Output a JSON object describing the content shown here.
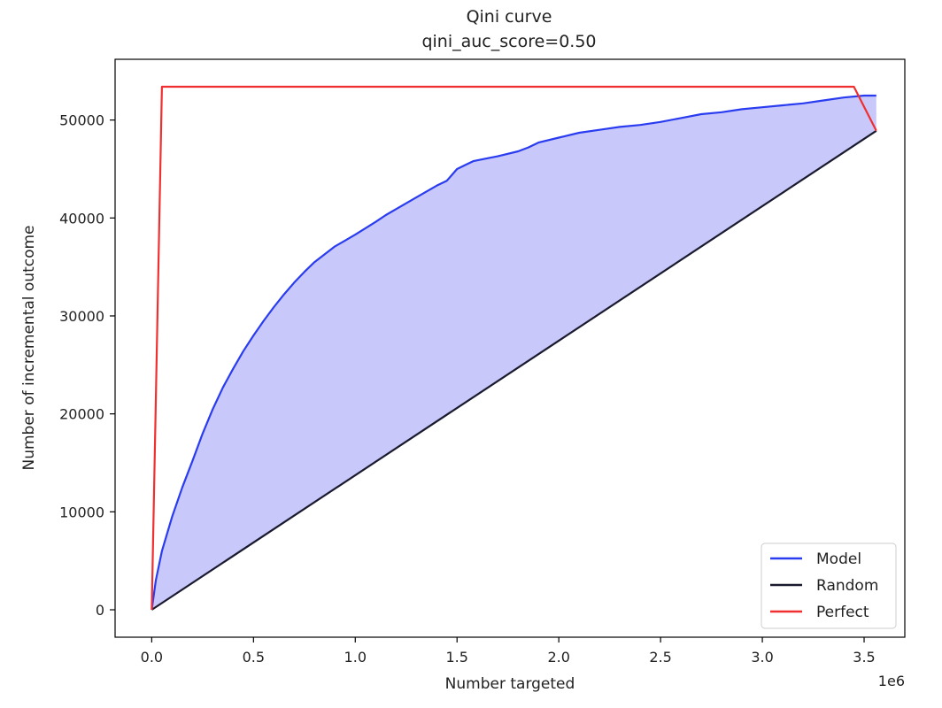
{
  "chart_data": {
    "type": "line",
    "title": "Qini curve",
    "subtitle": "qini_auc_score=0.50",
    "xlabel": "Number targeted",
    "ylabel": "Number of incremental outcome",
    "x_offset_label": "1e6",
    "xlim": [
      -0.18,
      3.7
    ],
    "ylim": [
      -2800,
      56200
    ],
    "x_ticks": [
      0.0,
      0.5,
      1.0,
      1.5,
      2.0,
      2.5,
      3.0,
      3.5
    ],
    "x_tick_labels": [
      "0.0",
      "0.5",
      "1.0",
      "1.5",
      "2.0",
      "2.5",
      "3.0",
      "3.5"
    ],
    "y_ticks": [
      0,
      10000,
      20000,
      30000,
      40000,
      50000
    ],
    "y_tick_labels": [
      "0",
      "10000",
      "20000",
      "30000",
      "40000",
      "50000"
    ],
    "grid": false,
    "legend_position": "bottom-right",
    "fill_between": {
      "upper": "Model",
      "lower": "Random",
      "color": "#c8c8fa"
    },
    "series": [
      {
        "name": "Model",
        "color": "#2a3cf0",
        "x": [
          0,
          0.02,
          0.05,
          0.1,
          0.15,
          0.2,
          0.25,
          0.3,
          0.35,
          0.4,
          0.45,
          0.5,
          0.55,
          0.6,
          0.65,
          0.7,
          0.75,
          0.8,
          0.85,
          0.9,
          0.95,
          1.0,
          1.1,
          1.15,
          1.2,
          1.3,
          1.4,
          1.45,
          1.5,
          1.55,
          1.58,
          1.65,
          1.7,
          1.8,
          1.85,
          1.9,
          2.0,
          2.1,
          2.2,
          2.3,
          2.4,
          2.5,
          2.6,
          2.7,
          2.8,
          2.9,
          3.0,
          3.1,
          3.2,
          3.3,
          3.4,
          3.5,
          3.56
        ],
        "y": [
          0,
          3000,
          6000,
          9500,
          12500,
          15200,
          18000,
          20500,
          22700,
          24600,
          26400,
          28000,
          29500,
          30900,
          32200,
          33400,
          34500,
          35500,
          36300,
          37100,
          37700,
          38300,
          39600,
          40300,
          40900,
          42100,
          43300,
          43800,
          45000,
          45500,
          45800,
          46100,
          46300,
          46800,
          47200,
          47700,
          48200,
          48700,
          49000,
          49300,
          49500,
          49800,
          50200,
          50600,
          50800,
          51100,
          51300,
          51500,
          51700,
          52000,
          52300,
          52500,
          52500
        ]
      },
      {
        "name": "Random",
        "color": "#1a1a2e",
        "x": [
          0,
          3.56
        ],
        "y": [
          0,
          48900
        ]
      },
      {
        "name": "Perfect",
        "color": "#f03030",
        "x": [
          0,
          0.05,
          3.45,
          3.56
        ],
        "y": [
          0,
          53400,
          53400,
          48900
        ]
      }
    ]
  }
}
